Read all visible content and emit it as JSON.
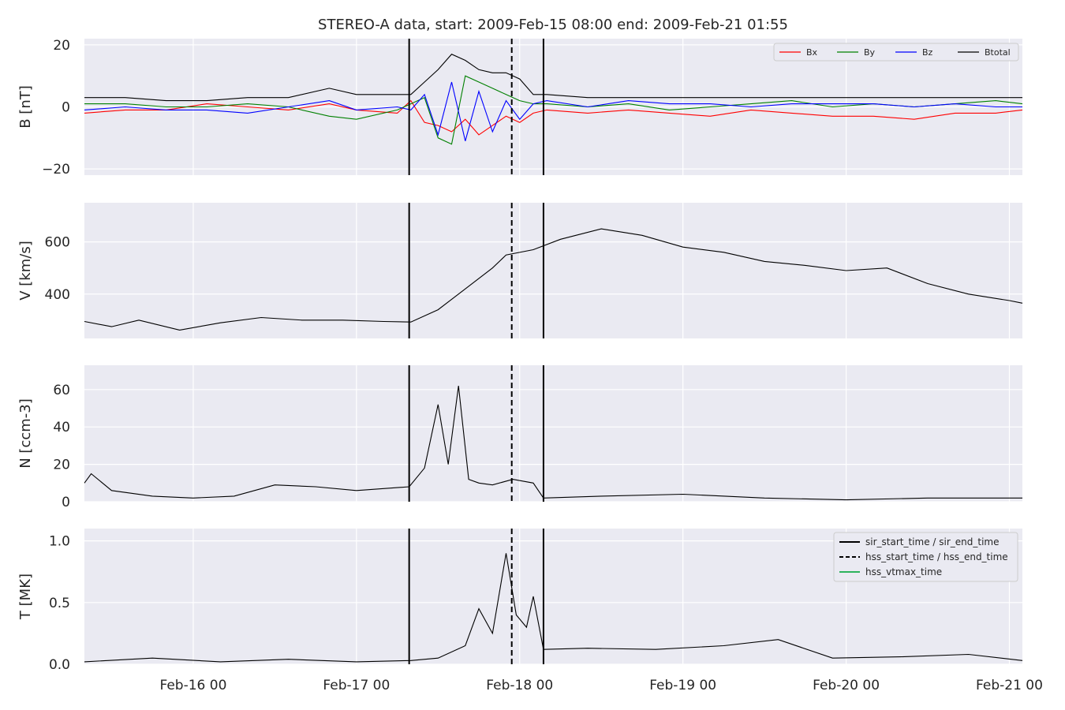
{
  "title": "STEREO-A data, start: 2009-Feb-15 08:00  end: 2009-Feb-21 01:55",
  "colors": {
    "panel_bg": "#eaeaf2",
    "grid": "#ffffff",
    "text": "#262626",
    "vtmax": "#2db35d"
  },
  "time_axis": {
    "start": "2009-02-15 08:00",
    "end": "2009-02-21 01:55",
    "ticks": [
      {
        "t": "2009-02-16 00:00",
        "label": "Feb-16 00"
      },
      {
        "t": "2009-02-17 00:00",
        "label": "Feb-17 00"
      },
      {
        "t": "2009-02-18 00:00",
        "label": "Feb-18 00"
      },
      {
        "t": "2009-02-19 00:00",
        "label": "Feb-19 00"
      },
      {
        "t": "2009-02-20 00:00",
        "label": "Feb-20 00"
      },
      {
        "t": "2009-02-21 00:00",
        "label": "Feb-21 00"
      }
    ]
  },
  "events": {
    "sir_start_time": "2009-02-17 07:45",
    "sir_end_time": "2009-02-18 03:30",
    "hss_start_time": "2009-02-17 22:50"
  },
  "legend_B": [
    {
      "name": "Bx",
      "color": "#ff0000"
    },
    {
      "name": "By",
      "color": "#008000"
    },
    {
      "name": "Bz",
      "color": "#0000ff"
    },
    {
      "name": "Btotal",
      "color": "#000000"
    }
  ],
  "legend_events": [
    {
      "name": "sir_start_time / sir_end_time",
      "style": "solid",
      "color": "#000000"
    },
    {
      "name": "hss_start_time / hss_end_time",
      "style": "dashed",
      "color": "#000000"
    },
    {
      "name": "hss_vtmax_time",
      "style": "solid",
      "color": "#2db35d"
    }
  ],
  "chart_data": [
    {
      "type": "line",
      "ylabel": "B [nT]",
      "ylim": [
        -22,
        22
      ],
      "yticks": [
        {
          "v": 20,
          "label": "20"
        },
        {
          "v": 0,
          "label": "0"
        },
        {
          "v": -20,
          "label": "−20"
        }
      ],
      "grid": true,
      "legend_position": "top-right",
      "x": [
        "2009-02-15 08:00",
        "2009-02-15 14:00",
        "2009-02-15 20:00",
        "2009-02-16 02:00",
        "2009-02-16 08:00",
        "2009-02-16 14:00",
        "2009-02-16 20:00",
        "2009-02-17 00:00",
        "2009-02-17 06:00",
        "2009-02-17 08:00",
        "2009-02-17 10:00",
        "2009-02-17 12:00",
        "2009-02-17 14:00",
        "2009-02-17 16:00",
        "2009-02-17 18:00",
        "2009-02-17 20:00",
        "2009-02-17 22:00",
        "2009-02-18 00:00",
        "2009-02-18 02:00",
        "2009-02-18 04:00",
        "2009-02-18 10:00",
        "2009-02-18 16:00",
        "2009-02-18 22:00",
        "2009-02-19 04:00",
        "2009-02-19 10:00",
        "2009-02-19 16:00",
        "2009-02-19 22:00",
        "2009-02-20 04:00",
        "2009-02-20 10:00",
        "2009-02-20 16:00",
        "2009-02-20 22:00",
        "2009-02-21 01:55"
      ],
      "series": [
        {
          "name": "Bx",
          "values": [
            -2,
            -1,
            -1,
            1,
            0,
            -1,
            1,
            -1,
            -2,
            2,
            -5,
            -6,
            -8,
            -4,
            -9,
            -6,
            -3,
            -5,
            -2,
            -1,
            -2,
            -1,
            -2,
            -3,
            -1,
            -2,
            -3,
            -3,
            -4,
            -2,
            -2,
            -1
          ]
        },
        {
          "name": "By",
          "values": [
            1,
            1,
            0,
            0,
            1,
            0,
            -3,
            -4,
            -1,
            1,
            3,
            -10,
            -12,
            10,
            8,
            6,
            4,
            2,
            1,
            1,
            0,
            1,
            -1,
            0,
            1,
            2,
            0,
            1,
            0,
            1,
            2,
            1
          ]
        },
        {
          "name": "Bz",
          "values": [
            -1,
            0,
            -1,
            -1,
            -2,
            0,
            2,
            -1,
            0,
            -1,
            4,
            -9,
            8,
            -11,
            5,
            -8,
            2,
            -4,
            1,
            2,
            0,
            2,
            1,
            1,
            0,
            1,
            1,
            1,
            0,
            1,
            0,
            0
          ]
        },
        {
          "name": "Btotal",
          "values": [
            3,
            3,
            2,
            2,
            3,
            3,
            6,
            4,
            4,
            4,
            8,
            12,
            17,
            15,
            12,
            11,
            11,
            9,
            4,
            4,
            3,
            3,
            3,
            3,
            3,
            3,
            3,
            3,
            3,
            3,
            3,
            3
          ]
        }
      ]
    },
    {
      "type": "line",
      "ylabel": "V [km/s]",
      "ylim": [
        230,
        750
      ],
      "yticks": [
        {
          "v": 600,
          "label": "600"
        },
        {
          "v": 400,
          "label": "400"
        }
      ],
      "grid": true,
      "x": [
        "2009-02-15 08:00",
        "2009-02-15 12:00",
        "2009-02-15 16:00",
        "2009-02-15 22:00",
        "2009-02-16 04:00",
        "2009-02-16 10:00",
        "2009-02-16 16:00",
        "2009-02-16 22:00",
        "2009-02-17 04:00",
        "2009-02-17 08:00",
        "2009-02-17 12:00",
        "2009-02-17 16:00",
        "2009-02-17 20:00",
        "2009-02-17 22:00",
        "2009-02-18 02:00",
        "2009-02-18 06:00",
        "2009-02-18 12:00",
        "2009-02-18 18:00",
        "2009-02-19 00:00",
        "2009-02-19 06:00",
        "2009-02-19 12:00",
        "2009-02-19 18:00",
        "2009-02-20 00:00",
        "2009-02-20 06:00",
        "2009-02-20 12:00",
        "2009-02-20 18:00",
        "2009-02-21 00:00",
        "2009-02-21 01:55"
      ],
      "series": [
        {
          "name": "V",
          "values": [
            295,
            275,
            300,
            262,
            290,
            310,
            300,
            300,
            295,
            293,
            340,
            420,
            500,
            550,
            570,
            610,
            650,
            625,
            580,
            560,
            525,
            510,
            490,
            500,
            440,
            400,
            375,
            365
          ]
        }
      ]
    },
    {
      "type": "line",
      "ylabel": "N [ccm-3]",
      "ylim": [
        0,
        73
      ],
      "yticks": [
        {
          "v": 60,
          "label": "60"
        },
        {
          "v": 40,
          "label": "40"
        },
        {
          "v": 20,
          "label": "20"
        },
        {
          "v": 0,
          "label": "0"
        }
      ],
      "grid": true,
      "x": [
        "2009-02-15 08:00",
        "2009-02-15 09:00",
        "2009-02-15 12:00",
        "2009-02-15 18:00",
        "2009-02-16 00:00",
        "2009-02-16 06:00",
        "2009-02-16 12:00",
        "2009-02-16 18:00",
        "2009-02-17 00:00",
        "2009-02-17 07:45",
        "2009-02-17 10:00",
        "2009-02-17 12:00",
        "2009-02-17 13:30",
        "2009-02-17 15:00",
        "2009-02-17 16:30",
        "2009-02-17 18:00",
        "2009-02-17 20:00",
        "2009-02-17 23:00",
        "2009-02-18 02:00",
        "2009-02-18 03:30",
        "2009-02-18 12:00",
        "2009-02-19 00:00",
        "2009-02-19 12:00",
        "2009-02-20 00:00",
        "2009-02-20 12:00",
        "2009-02-21 00:00",
        "2009-02-21 01:55"
      ],
      "series": [
        {
          "name": "N",
          "values": [
            10,
            15,
            6,
            3,
            2,
            3,
            9,
            8,
            6,
            8,
            18,
            52,
            20,
            62,
            12,
            10,
            9,
            12,
            10,
            2,
            3,
            4,
            2,
            1,
            2,
            2,
            2
          ]
        }
      ]
    },
    {
      "type": "line",
      "ylabel": "T [MK]",
      "ylim": [
        0,
        1.1
      ],
      "yticks": [
        {
          "v": 1.0,
          "label": "1.0"
        },
        {
          "v": 0.5,
          "label": "0.5"
        },
        {
          "v": 0.0,
          "label": "0.0"
        }
      ],
      "grid": true,
      "legend_position": "top-right",
      "x": [
        "2009-02-15 08:00",
        "2009-02-15 18:00",
        "2009-02-16 04:00",
        "2009-02-16 14:00",
        "2009-02-17 00:00",
        "2009-02-17 08:00",
        "2009-02-17 12:00",
        "2009-02-17 16:00",
        "2009-02-17 18:00",
        "2009-02-17 20:00",
        "2009-02-17 22:00",
        "2009-02-17 23:30",
        "2009-02-18 01:00",
        "2009-02-18 02:00",
        "2009-02-18 03:30",
        "2009-02-18 10:00",
        "2009-02-18 20:00",
        "2009-02-19 06:00",
        "2009-02-19 14:00",
        "2009-02-19 22:00",
        "2009-02-20 08:00",
        "2009-02-20 18:00",
        "2009-02-21 01:55"
      ],
      "series": [
        {
          "name": "T",
          "values": [
            0.02,
            0.05,
            0.02,
            0.04,
            0.02,
            0.03,
            0.05,
            0.15,
            0.45,
            0.25,
            0.9,
            0.4,
            0.3,
            0.55,
            0.12,
            0.13,
            0.12,
            0.15,
            0.2,
            0.05,
            0.06,
            0.08,
            0.03
          ]
        }
      ]
    }
  ]
}
